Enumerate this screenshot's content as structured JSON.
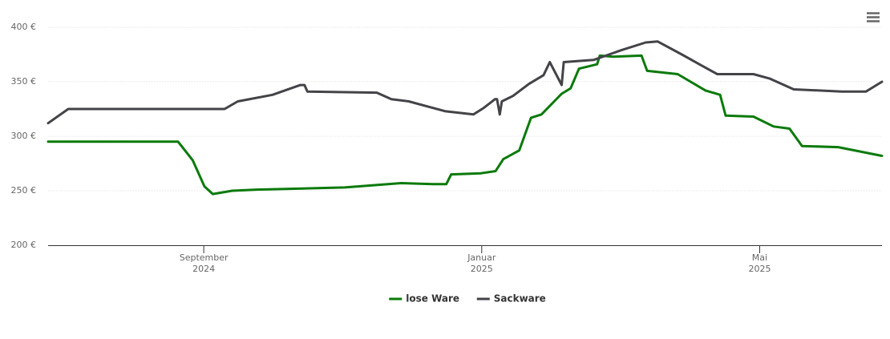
{
  "chart_data": {
    "type": "line",
    "xlim": [
      0,
      12
    ],
    "xticks": [
      {
        "value": 2.24,
        "label": "September\n2024"
      },
      {
        "value": 6.24,
        "label": "Januar\n2025"
      },
      {
        "value": 10.24,
        "label": "Mai\n2025"
      }
    ],
    "ylim": [
      200,
      400
    ],
    "yticks": [
      {
        "value": 200,
        "label": "200 €"
      },
      {
        "value": 250,
        "label": "250 €"
      },
      {
        "value": 300,
        "label": "300 €"
      },
      {
        "value": 350,
        "label": "350 €"
      },
      {
        "value": 400,
        "label": "400 €"
      }
    ],
    "grid": true,
    "legend": "bottom",
    "series": [
      {
        "name": "lose Ware",
        "color": "#0a7a0a",
        "x": [
          0,
          1.87,
          2.08,
          2.25,
          2.37,
          2.65,
          3.0,
          4.27,
          5.08,
          5.54,
          5.73,
          5.8,
          6.23,
          6.44,
          6.55,
          6.78,
          6.95,
          7.1,
          7.39,
          7.52,
          7.64,
          7.9,
          7.94,
          8.13,
          8.54,
          8.62,
          9.06,
          9.46,
          9.67,
          9.75,
          10.15,
          10.44,
          10.67,
          10.85,
          11.37,
          12
        ],
        "values": [
          295,
          295,
          278,
          254,
          247,
          250,
          251,
          253,
          257,
          256,
          256,
          265,
          266,
          268,
          279,
          287,
          317,
          320,
          339,
          344,
          362,
          366,
          374,
          373,
          374,
          360,
          357,
          342,
          338,
          319,
          318,
          309,
          307,
          291,
          290,
          282
        ]
      },
      {
        "name": "Sackware",
        "color": "#434348",
        "x": [
          0,
          0.29,
          2.54,
          2.73,
          3.23,
          3.63,
          3.69,
          3.73,
          4.73,
          4.94,
          5.19,
          5.71,
          6.12,
          6.27,
          6.43,
          6.46,
          6.5,
          6.53,
          6.69,
          6.92,
          7.13,
          7.22,
          7.39,
          7.42,
          7.85,
          8.25,
          8.6,
          8.77,
          9.12,
          9.4,
          9.63,
          10.15,
          10.38,
          10.73,
          11.42,
          11.77,
          12
        ],
        "values": [
          312,
          325,
          325,
          332,
          338,
          347,
          347,
          341,
          340,
          334,
          332,
          323,
          320,
          326,
          334,
          334,
          320,
          332,
          337,
          348,
          356,
          368,
          347,
          368,
          370,
          379,
          386,
          387,
          375,
          365,
          357,
          357,
          353,
          343,
          341,
          341,
          350
        ]
      }
    ]
  }
}
